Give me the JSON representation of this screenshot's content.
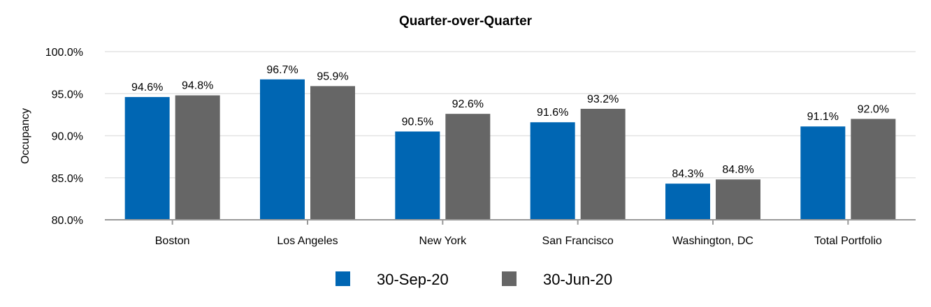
{
  "chart_data": {
    "type": "bar",
    "title": "Quarter-over-Quarter",
    "xlabel": "",
    "ylabel": "Occupancy",
    "ylim": [
      80,
      100
    ],
    "yticks": [
      80,
      85,
      90,
      95,
      100
    ],
    "ytick_labels": [
      "80.0%",
      "85.0%",
      "90.0%",
      "95.0%",
      "100.0%"
    ],
    "categories": [
      "Boston",
      "Los Angeles",
      "New York",
      "San Francisco",
      "Washington, DC",
      "Total Portfolio"
    ],
    "series": [
      {
        "name": "30-Sep-20",
        "color": "#0066b3",
        "values": [
          94.6,
          96.7,
          90.5,
          91.6,
          84.3,
          91.1
        ],
        "labels": [
          "94.6%",
          "96.7%",
          "90.5%",
          "91.6%",
          "84.3%",
          "91.1%"
        ]
      },
      {
        "name": "30-Jun-20",
        "color": "#666666",
        "values": [
          94.8,
          95.9,
          92.6,
          93.2,
          84.8,
          92.0
        ],
        "labels": [
          "94.8%",
          "95.9%",
          "92.6%",
          "93.2%",
          "84.8%",
          "92.0%"
        ]
      }
    ],
    "grid": true,
    "legend_position": "bottom"
  }
}
